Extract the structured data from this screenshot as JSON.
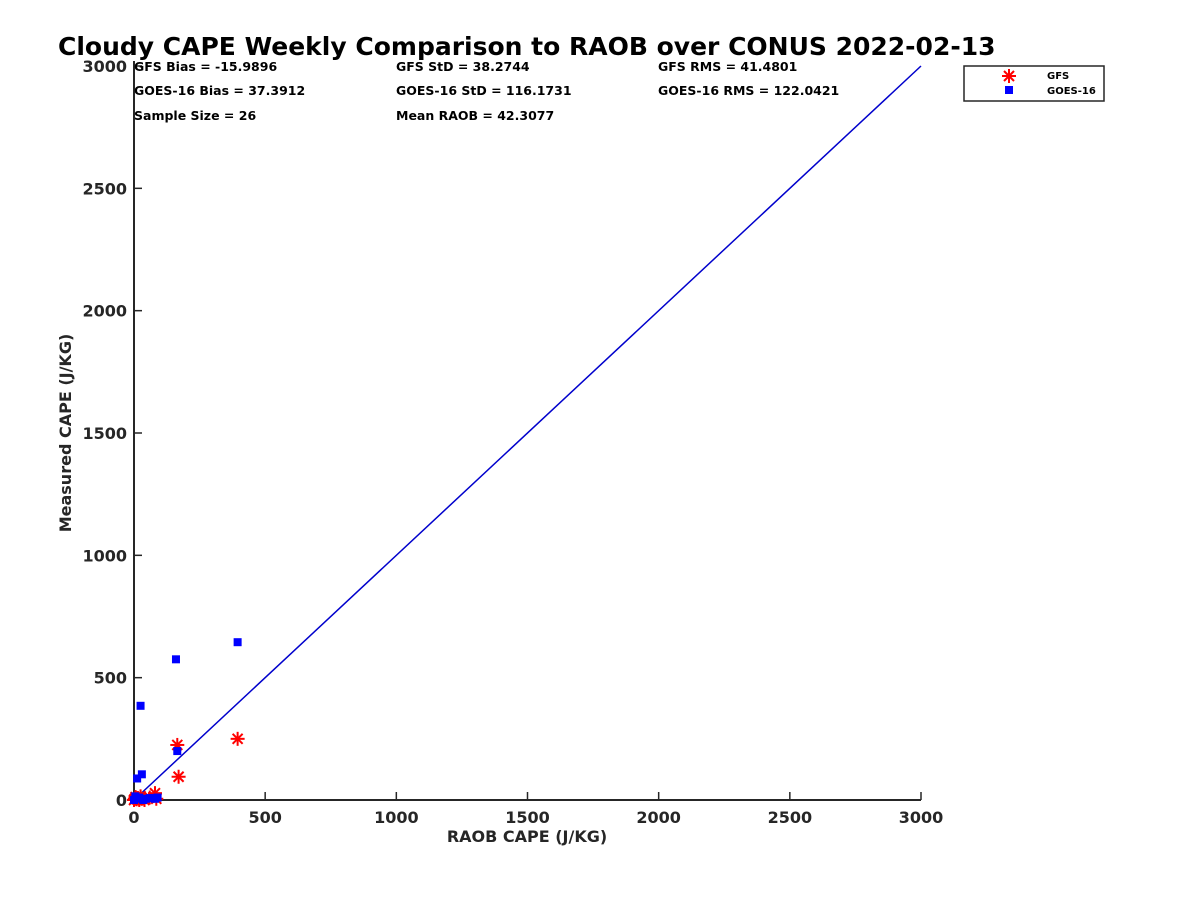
{
  "chart_data": {
    "type": "scatter",
    "title": "Cloudy CAPE Weekly Comparison to RAOB over CONUS 2022-02-13",
    "xlabel": "RAOB CAPE (J/KG)",
    "ylabel": "Measured CAPE (J/KG)",
    "xlim": [
      0,
      3000
    ],
    "ylim": [
      0,
      3000
    ],
    "xticks": [
      "0",
      "500",
      "1000",
      "1500",
      "2000",
      "2500",
      "3000"
    ],
    "yticks": [
      "0",
      "500",
      "1000",
      "1500",
      "2000",
      "2500",
      "3000"
    ],
    "grid": false,
    "legend_position": "top-right, outside plot",
    "stats": [
      [
        "GFS Bias = -15.9896",
        "GFS StD = 38.2744",
        "GFS RMS = 41.4801"
      ],
      [
        "GOES-16 Bias = 37.3912",
        "GOES-16 StD = 116.1731",
        "GOES-16 RMS = 122.0421"
      ],
      [
        "Sample Size = 26",
        "Mean RAOB = 42.3077",
        ""
      ]
    ],
    "series": [
      {
        "name": "GFS",
        "marker": "asterisk",
        "color": "#ff0000",
        "points": [
          [
            0,
            0
          ],
          [
            3,
            5
          ],
          [
            6,
            12
          ],
          [
            10,
            3
          ],
          [
            15,
            8
          ],
          [
            20,
            0
          ],
          [
            25,
            15
          ],
          [
            30,
            5
          ],
          [
            40,
            0
          ],
          [
            60,
            10
          ],
          [
            80,
            28
          ],
          [
            85,
            5
          ],
          [
            165,
            225
          ],
          [
            170,
            95
          ],
          [
            395,
            250
          ]
        ]
      },
      {
        "name": "GOES-16",
        "marker": "square",
        "color": "#0000ff",
        "points": [
          [
            0,
            0
          ],
          [
            5,
            15
          ],
          [
            10,
            5
          ],
          [
            12,
            88
          ],
          [
            20,
            10
          ],
          [
            25,
            385
          ],
          [
            30,
            105
          ],
          [
            35,
            0
          ],
          [
            45,
            5
          ],
          [
            60,
            8
          ],
          [
            80,
            5
          ],
          [
            90,
            10
          ],
          [
            160,
            575
          ],
          [
            165,
            200
          ],
          [
            395,
            645
          ]
        ]
      },
      {
        "name": "1:1 line",
        "color": "#0000cc",
        "line": [
          [
            0,
            0
          ],
          [
            3000,
            3000
          ]
        ]
      }
    ]
  }
}
